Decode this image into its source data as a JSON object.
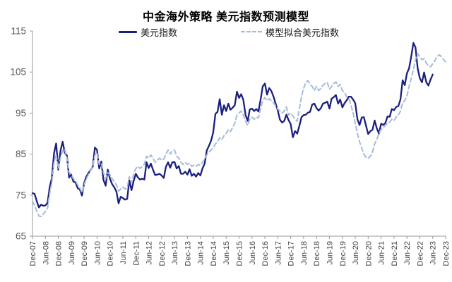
{
  "title": "中金海外策略 美元指数预测模型",
  "legend": {
    "position": "top",
    "items": [
      {
        "label": "美元指数",
        "color": "#1b1f7e",
        "style": "solid"
      },
      {
        "label": "模型拟合美元指数",
        "color": "#a7bbd8",
        "style": "dashed"
      }
    ]
  },
  "colors": {
    "background": "#ffffff",
    "axis": "#999999",
    "y_tick_label": "#595959",
    "x_tick_label": "#404040",
    "navy_series": "#1b1f7e",
    "model_series": "#a7bbd8"
  },
  "chart_data": {
    "type": "line",
    "title": "中金海外策略 美元指数预测模型",
    "xlabel": "",
    "ylabel": "",
    "grid": false,
    "legend_position": "top",
    "ylim": [
      65,
      115
    ],
    "y_ticks": [
      115,
      105,
      95,
      85,
      75,
      65
    ],
    "x_start": "Dec-2007",
    "x_frequency": "monthly",
    "x_tick_interval_months": 6,
    "x_tick_labels": [
      "Dec-07",
      "Jun-08",
      "Dec-08",
      "Jun-09",
      "Dec-09",
      "Jun-10",
      "Dec-10",
      "Jun-11",
      "Dec-11",
      "Jun-12",
      "Dec-12",
      "Jun-13",
      "Dec-13",
      "Jun-14",
      "Dec-14",
      "Jun-15",
      "Dec-15",
      "Jun-16",
      "Dec-16",
      "Jun-17",
      "Dec-17",
      "Jun-18",
      "Dec-18",
      "Jun-19",
      "Dec-19",
      "Jun-20",
      "Dec-20",
      "Jun-21",
      "Dec-21",
      "Jun-22",
      "Dec-22",
      "Jun-23",
      "Dec-23"
    ],
    "series": [
      {
        "name": "美元指数",
        "style": "solid",
        "color": "#1b1f7e",
        "start_month": "Dec-2007",
        "end_month": "Jun-2023",
        "values": [
          75.5,
          75.3,
          73.5,
          72.0,
          72.7,
          72.4,
          72.5,
          73.1,
          77.0,
          79.1,
          85.2,
          87.6,
          81.2,
          85.8,
          88.0,
          85.4,
          84.6,
          79.3,
          80.0,
          78.3,
          78.1,
          76.7,
          76.4,
          74.9,
          77.9,
          79.5,
          80.4,
          81.1,
          81.9,
          86.6,
          86.0,
          81.5,
          83.2,
          78.7,
          77.3,
          81.2,
          79.0,
          77.7,
          76.9,
          75.9,
          73.0,
          74.6,
          74.3,
          73.9,
          74.1,
          78.6,
          76.2,
          78.4,
          80.2,
          79.3,
          78.8,
          79.0,
          78.8,
          83.0,
          81.6,
          82.7,
          81.2,
          79.9,
          80.0,
          80.2,
          79.8,
          79.2,
          81.9,
          83.0,
          81.7,
          83.0,
          83.1,
          81.5,
          82.1,
          80.2,
          80.2,
          80.7,
          80.0,
          81.3,
          79.7,
          80.2,
          79.5,
          80.4,
          79.8,
          81.5,
          82.7,
          85.9,
          87.0,
          88.3,
          90.3,
          94.8,
          95.3,
          98.4,
          94.6,
          96.9,
          95.5,
          97.3,
          95.8,
          96.3,
          96.9,
          100.2,
          98.7,
          99.6,
          98.2,
          94.6,
          93.1,
          95.9,
          96.1,
          95.5,
          96.0,
          95.4,
          98.3,
          101.5,
          102.2,
          99.5,
          101.1,
          100.4,
          99.0,
          97.3,
          95.6,
          93.4,
          92.7,
          93.1,
          94.6,
          93.3,
          92.3,
          89.1,
          90.6,
          90.0,
          91.8,
          94.0,
          94.5,
          94.6,
          95.1,
          95.3,
          97.1,
          97.3,
          96.2,
          95.6,
          96.2,
          97.3,
          97.5,
          97.8,
          96.1,
          98.5,
          98.9,
          99.4,
          97.3,
          98.3,
          96.4,
          97.4,
          98.1,
          99.0,
          99.0,
          98.3,
          97.4,
          93.5,
          92.1,
          93.9,
          94.0,
          91.9,
          89.9,
          90.6,
          90.9,
          93.2,
          91.3,
          90.0,
          92.4,
          92.1,
          92.6,
          94.2,
          94.1,
          96.0,
          95.7,
          96.5,
          96.7,
          98.3,
          103.0,
          101.8,
          104.7,
          105.9,
          108.8,
          112.1,
          111.0,
          105.9,
          103.5,
          102.5,
          104.9,
          102.5,
          101.7,
          103.2,
          104.4
        ]
      },
      {
        "name": "模型拟合美元指数",
        "style": "dashed",
        "color": "#a7bbd8",
        "start_month": "Dec-2007",
        "end_month": "Dec-2023",
        "values": [
          73.5,
          72.5,
          71.0,
          69.9,
          69.8,
          70.4,
          71.0,
          71.8,
          75.5,
          78.0,
          83.0,
          85.0,
          81.5,
          84.0,
          85.8,
          86.2,
          84.0,
          80.5,
          80.2,
          79.0,
          78.5,
          77.5,
          76.8,
          75.6,
          77.5,
          79.0,
          80.0,
          81.0,
          82.0,
          84.8,
          85.3,
          82.5,
          82.8,
          80.5,
          79.0,
          80.5,
          80.0,
          79.0,
          78.3,
          77.5,
          76.0,
          76.5,
          77.0,
          76.5,
          76.8,
          79.5,
          78.0,
          80.0,
          81.5,
          82.0,
          81.5,
          82.0,
          82.5,
          84.5,
          84.0,
          84.8,
          84.0,
          83.0,
          83.5,
          84.0,
          83.5,
          83.8,
          85.0,
          86.0,
          85.0,
          85.8,
          86.0,
          84.5,
          84.0,
          83.0,
          82.5,
          83.0,
          82.5,
          82.8,
          82.0,
          82.3,
          82.0,
          82.5,
          82.3,
          83.0,
          83.8,
          84.8,
          85.5,
          86.0,
          86.5,
          87.5,
          88.0,
          89.0,
          88.5,
          89.5,
          90.0,
          91.0,
          90.5,
          91.5,
          92.5,
          94.5,
          95.0,
          95.5,
          94.5,
          93.0,
          92.0,
          93.5,
          94.0,
          93.5,
          94.0,
          93.8,
          96.0,
          98.0,
          98.8,
          98.0,
          98.5,
          98.0,
          97.5,
          96.8,
          96.0,
          95.5,
          95.0,
          95.5,
          96.5,
          94.5,
          95.0,
          94.3,
          93.5,
          93.0,
          96.0,
          99.0,
          101.0,
          102.5,
          102.9,
          102.0,
          101.5,
          100.5,
          101.5,
          100.5,
          101.0,
          101.8,
          102.2,
          102.5,
          100.8,
          101.5,
          102.2,
          102.6,
          101.5,
          102.0,
          100.5,
          100.0,
          99.0,
          98.5,
          97.0,
          95.0,
          92.5,
          90.0,
          88.0,
          86.5,
          85.0,
          84.2,
          84.0,
          84.5,
          85.5,
          87.5,
          88.5,
          90.0,
          91.0,
          91.5,
          92.0,
          92.5,
          92.8,
          93.5,
          93.2,
          94.0,
          94.5,
          95.5,
          97.5,
          98.0,
          99.2,
          101.5,
          103.5,
          105.5,
          108.0,
          109.5,
          108.8,
          108.0,
          108.3,
          107.2,
          106.5,
          106.3,
          107.0,
          107.8,
          108.8,
          109.2,
          108.8,
          108.0,
          107.5
        ]
      }
    ]
  }
}
